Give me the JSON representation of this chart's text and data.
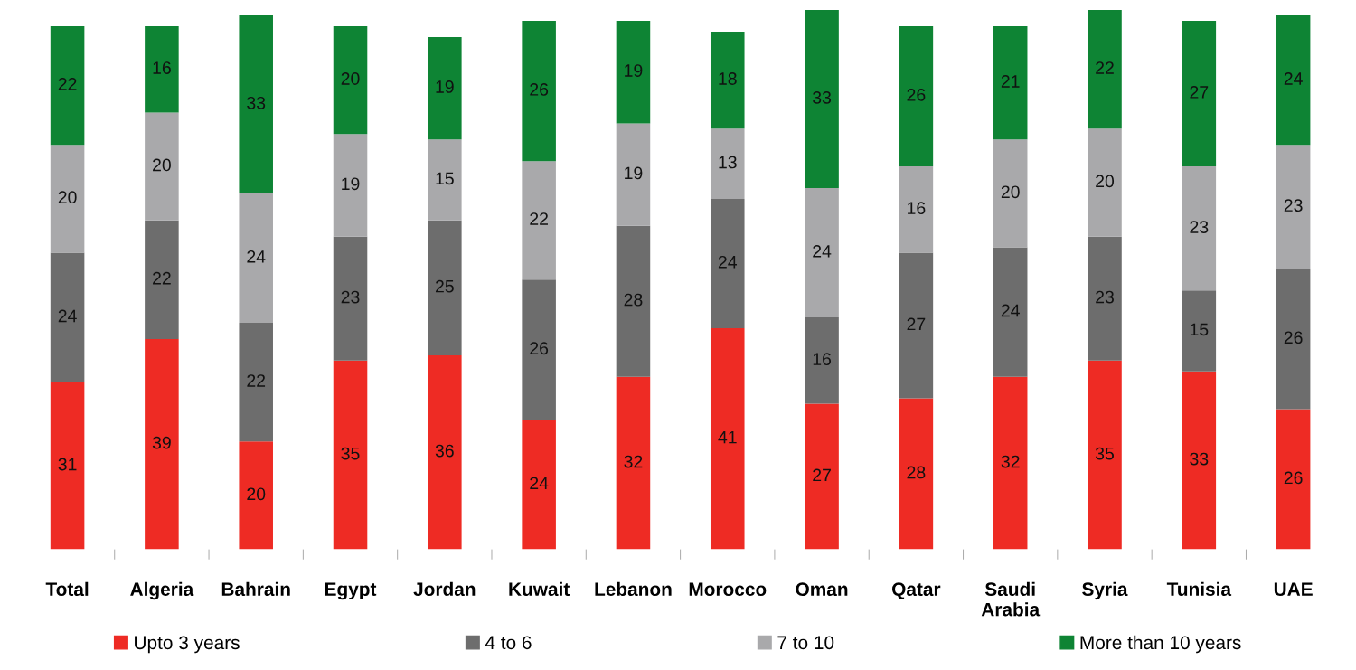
{
  "chart_data": {
    "type": "bar",
    "stacked": true,
    "data_labels": true,
    "legend": "bottom",
    "categories": [
      "Total",
      "Algeria",
      "Bahrain",
      "Egypt",
      "Jordan",
      "Kuwait",
      "Lebanon",
      "Morocco",
      "Oman",
      "Qatar",
      "Saudi\nArabia",
      "Syria",
      "Tunisia",
      "UAE"
    ],
    "series": [
      {
        "name": "Upto 3 years",
        "color": "#ee2b24",
        "values": [
          31,
          39,
          20,
          35,
          36,
          24,
          32,
          41,
          27,
          28,
          32,
          35,
          33,
          26
        ]
      },
      {
        "name": "4 to 6",
        "color": "#6d6d6d",
        "values": [
          24,
          22,
          22,
          23,
          25,
          26,
          28,
          24,
          16,
          27,
          24,
          23,
          15,
          26
        ]
      },
      {
        "name": "7 to 10",
        "color": "#a9a9ab",
        "values": [
          20,
          20,
          24,
          19,
          15,
          22,
          19,
          13,
          24,
          16,
          20,
          20,
          23,
          23
        ]
      },
      {
        "name": "More than 10 years",
        "color": "#0e8434",
        "values": [
          22,
          16,
          33,
          20,
          19,
          26,
          19,
          18,
          33,
          26,
          21,
          22,
          27,
          24
        ]
      }
    ]
  }
}
